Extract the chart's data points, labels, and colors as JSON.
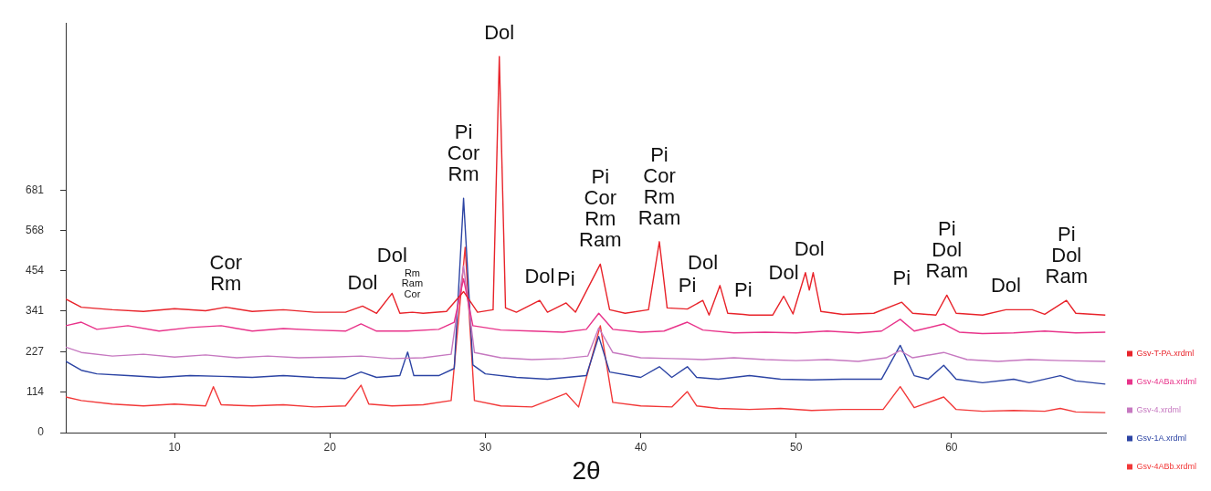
{
  "chart_data": {
    "type": "line",
    "xlabel": "2θ",
    "xlim": [
      3,
      70
    ],
    "xticks": [
      10,
      20,
      30,
      40,
      50,
      60
    ],
    "ylim": [
      0,
      1150
    ],
    "yticks": [
      0,
      114,
      227,
      341,
      454,
      568,
      681
    ],
    "grid": false,
    "legend": "right",
    "marker": "none",
    "line_style": "solid",
    "series": [
      {
        "name": "Gsv-T-PA.xrdml",
        "color": "#e8232a",
        "x": [
          3,
          4,
          6,
          8,
          10,
          12,
          13.3,
          15,
          17,
          19,
          21,
          22.1,
          23,
          24,
          24.5,
          25.3,
          26,
          27.5,
          28.6,
          29.5,
          30.5,
          30.9,
          31.3,
          32,
          33.5,
          34,
          35.2,
          35.8,
          37.4,
          38,
          39,
          40.5,
          41.2,
          41.7,
          43,
          44,
          44.4,
          45.1,
          45.6,
          46.6,
          47,
          48.5,
          49.2,
          49.8,
          50.6,
          50.85,
          51.1,
          51.6,
          53,
          55,
          56.8,
          57.5,
          59,
          59.7,
          60.3,
          62,
          63.5,
          65.2,
          66,
          67.4,
          68,
          69.9
        ],
        "values": [
          375,
          352,
          345,
          340,
          348,
          342,
          352,
          340,
          345,
          338,
          338,
          355,
          335,
          391,
          335,
          338,
          335,
          340,
          396,
          338,
          345,
          1056,
          350,
          338,
          371,
          338,
          364,
          338,
          473,
          345,
          335,
          345,
          536,
          350,
          347,
          371,
          330,
          413,
          335,
          332,
          330,
          330,
          383,
          333,
          449,
          400,
          449,
          340,
          332,
          335,
          366,
          335,
          330,
          386,
          335,
          330,
          345,
          345,
          332,
          371,
          335,
          330
        ]
      },
      {
        "name": "Gsv-4ABa.xrdml",
        "color": "#e8338a",
        "x": [
          3,
          4,
          5,
          7,
          9,
          11,
          13,
          15,
          17,
          19,
          21,
          22,
          23,
          25,
          27,
          28,
          28.6,
          29.2,
          31,
          33,
          35,
          36.5,
          37.3,
          38.2,
          40,
          41.5,
          43,
          44,
          46,
          48,
          50,
          52,
          54,
          55.5,
          56.7,
          57.6,
          59.5,
          60.5,
          62,
          64,
          66,
          68,
          69.9
        ],
        "values": [
          300,
          310,
          290,
          300,
          285,
          295,
          300,
          285,
          292,
          288,
          285,
          305,
          285,
          285,
          290,
          310,
          432,
          300,
          288,
          285,
          282,
          290,
          335,
          290,
          282,
          285,
          310,
          288,
          280,
          282,
          280,
          285,
          280,
          285,
          318,
          285,
          305,
          282,
          278,
          280,
          285,
          280,
          282
        ]
      },
      {
        "name": "Gsv-4.xrdml",
        "color": "#c678c0",
        "x": [
          3,
          4,
          6,
          8,
          10,
          12,
          14,
          16,
          18,
          20,
          22,
          24,
          26,
          27.8,
          28.6,
          29.3,
          31,
          33,
          35,
          36.6,
          37.3,
          38.2,
          40,
          42,
          44,
          46,
          48,
          50,
          52,
          54,
          55.8,
          56.7,
          57.5,
          59.5,
          61,
          63,
          65,
          67,
          69.9
        ],
        "values": [
          240,
          225,
          215,
          220,
          212,
          218,
          210,
          215,
          210,
          212,
          215,
          208,
          210,
          220,
          468,
          225,
          210,
          205,
          208,
          215,
          294,
          225,
          210,
          208,
          205,
          210,
          205,
          202,
          205,
          200,
          210,
          230,
          210,
          225,
          205,
          200,
          205,
          202,
          200
        ]
      },
      {
        "name": "Gsv-1A.xrdml",
        "color": "#2c44a4",
        "x": [
          3,
          4,
          5,
          7,
          9,
          11,
          13,
          15,
          17,
          19,
          21,
          22,
          23,
          24.5,
          25,
          25.4,
          27,
          28,
          28.6,
          29.2,
          30,
          32,
          34,
          36.5,
          37.3,
          38,
          40,
          41.2,
          42,
          43,
          43.6,
          45,
          47,
          49,
          51,
          53,
          55.5,
          56.7,
          57.6,
          58.5,
          59.5,
          60.3,
          62,
          64,
          65,
          67,
          68,
          69.9
        ],
        "values": [
          200,
          175,
          165,
          160,
          155,
          160,
          158,
          155,
          160,
          155,
          152,
          170,
          155,
          160,
          226,
          160,
          160,
          180,
          658,
          190,
          165,
          155,
          150,
          160,
          270,
          170,
          155,
          185,
          155,
          185,
          155,
          150,
          160,
          150,
          148,
          150,
          150,
          245,
          160,
          150,
          189,
          150,
          140,
          150,
          140,
          160,
          145,
          136
        ]
      },
      {
        "name": "Gsv-4ABb.xrdml",
        "color": "#f23838",
        "x": [
          3,
          4,
          6,
          8,
          10,
          12,
          12.5,
          13,
          15,
          17,
          19,
          21,
          22,
          22.5,
          24,
          26,
          27.8,
          28.7,
          29.3,
          31,
          33,
          35.2,
          36,
          37.4,
          38.2,
          40,
          42,
          43,
          43.6,
          45,
          47,
          49,
          51,
          53,
          55.6,
          56.7,
          57.6,
          59.5,
          60.3,
          62,
          64,
          66,
          67,
          68,
          69.9
        ],
        "values": [
          100,
          90,
          80,
          75,
          80,
          75,
          129,
          78,
          75,
          78,
          72,
          75,
          133,
          80,
          75,
          78,
          90,
          520,
          90,
          75,
          72,
          110,
          72,
          300,
          85,
          75,
          72,
          115,
          75,
          68,
          65,
          68,
          62,
          65,
          65,
          129,
          70,
          100,
          65,
          60,
          62,
          60,
          68,
          58,
          56
        ]
      }
    ],
    "annotations": [
      {
        "text": "Cor\nRm",
        "x": 13.3,
        "y": 352
      },
      {
        "text": "Dol",
        "x": 22.1,
        "y": 355
      },
      {
        "text": "Dol",
        "x": 24,
        "y": 391
      },
      {
        "text": "Rm\nRam\nCor",
        "x": 25.3,
        "y": 338
      },
      {
        "text": "Pi\nCor\nRm",
        "x": 28.6,
        "y": 658
      },
      {
        "text": "Dol",
        "x": 30.9,
        "y": 1056
      },
      {
        "text": "Dol",
        "x": 33.5,
        "y": 371
      },
      {
        "text": "Pi",
        "x": 35.2,
        "y": 364
      },
      {
        "text": "Pi\nCor\nRm\nRam",
        "x": 37.4,
        "y": 473
      },
      {
        "text": "Pi\nCor\nRm\nRam",
        "x": 41.2,
        "y": 536
      },
      {
        "text": "Pi",
        "x": 43,
        "y": 347
      },
      {
        "text": "Dol",
        "x": 44,
        "y": 371
      },
      {
        "text": "Pi",
        "x": 46.6,
        "y": 332
      },
      {
        "text": "Dol",
        "x": 49.2,
        "y": 383
      },
      {
        "text": "Dol",
        "x": 50.85,
        "y": 400
      },
      {
        "text": "Pi",
        "x": 56.8,
        "y": 366
      },
      {
        "text": "Pi\nDol\nRam",
        "x": 59.7,
        "y": 386
      },
      {
        "text": "Dol",
        "x": 63.5,
        "y": 345
      },
      {
        "text": "Pi\nDol\nRam",
        "x": 67.4,
        "y": 371
      }
    ]
  }
}
